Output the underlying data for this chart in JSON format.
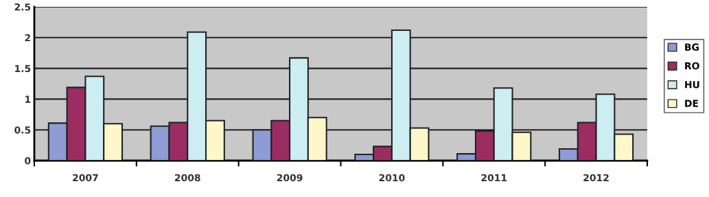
{
  "chart_data": {
    "type": "bar",
    "categories": [
      "2007",
      "2008",
      "2009",
      "2010",
      "2011",
      "2012"
    ],
    "series": [
      {
        "name": "BG",
        "color": "#8e9bd4",
        "values": [
          0.61,
          0.56,
          0.5,
          0.1,
          0.11,
          0.19
        ]
      },
      {
        "name": "RO",
        "color": "#9b2d63",
        "values": [
          1.19,
          0.62,
          0.65,
          0.23,
          0.48,
          0.62
        ]
      },
      {
        "name": "HU",
        "color": "#ccedf2",
        "values": [
          1.37,
          2.09,
          1.67,
          2.12,
          1.18,
          1.08
        ]
      },
      {
        "name": "DE",
        "color": "#fdf7c9",
        "values": [
          0.6,
          0.65,
          0.7,
          0.53,
          0.46,
          0.43
        ]
      }
    ],
    "ylim": [
      0,
      2.5
    ],
    "yticks": [
      0,
      0.5,
      1,
      1.5,
      2,
      2.5
    ],
    "grid": "y",
    "legend": "right"
  }
}
